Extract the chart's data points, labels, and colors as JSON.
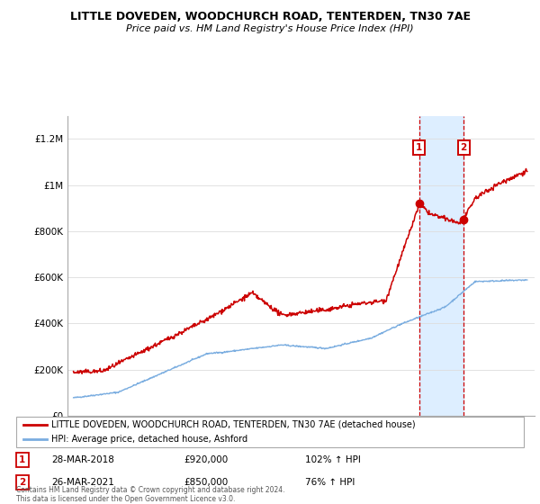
{
  "title": "LITTLE DOVEDEN, WOODCHURCH ROAD, TENTERDEN, TN30 7AE",
  "subtitle": "Price paid vs. HM Land Registry's House Price Index (HPI)",
  "ylim": [
    0,
    1300000
  ],
  "yticks": [
    0,
    200000,
    400000,
    600000,
    800000,
    1000000,
    1200000
  ],
  "ytick_labels": [
    "£0",
    "£200K",
    "£400K",
    "£600K",
    "£800K",
    "£1M",
    "£1.2M"
  ],
  "sale1": {
    "date_x": 2018.23,
    "price": 920000,
    "label": "1",
    "date_str": "28-MAR-2018",
    "price_str": "£920,000",
    "pct": "102% ↑ HPI"
  },
  "sale2": {
    "date_x": 2021.23,
    "price": 850000,
    "label": "2",
    "date_str": "26-MAR-2021",
    "price_str": "£850,000",
    "pct": "76% ↑ HPI"
  },
  "red_color": "#cc0000",
  "blue_color": "#7aade0",
  "highlight_bg": "#ddeeff",
  "footer": "Contains HM Land Registry data © Crown copyright and database right 2024.\nThis data is licensed under the Open Government Licence v3.0.",
  "legend_red": "LITTLE DOVEDEN, WOODCHURCH ROAD, TENTERDEN, TN30 7AE (detached house)",
  "legend_blue": "HPI: Average price, detached house, Ashford",
  "xlim_left": 1994.6,
  "xlim_right": 2026.0
}
